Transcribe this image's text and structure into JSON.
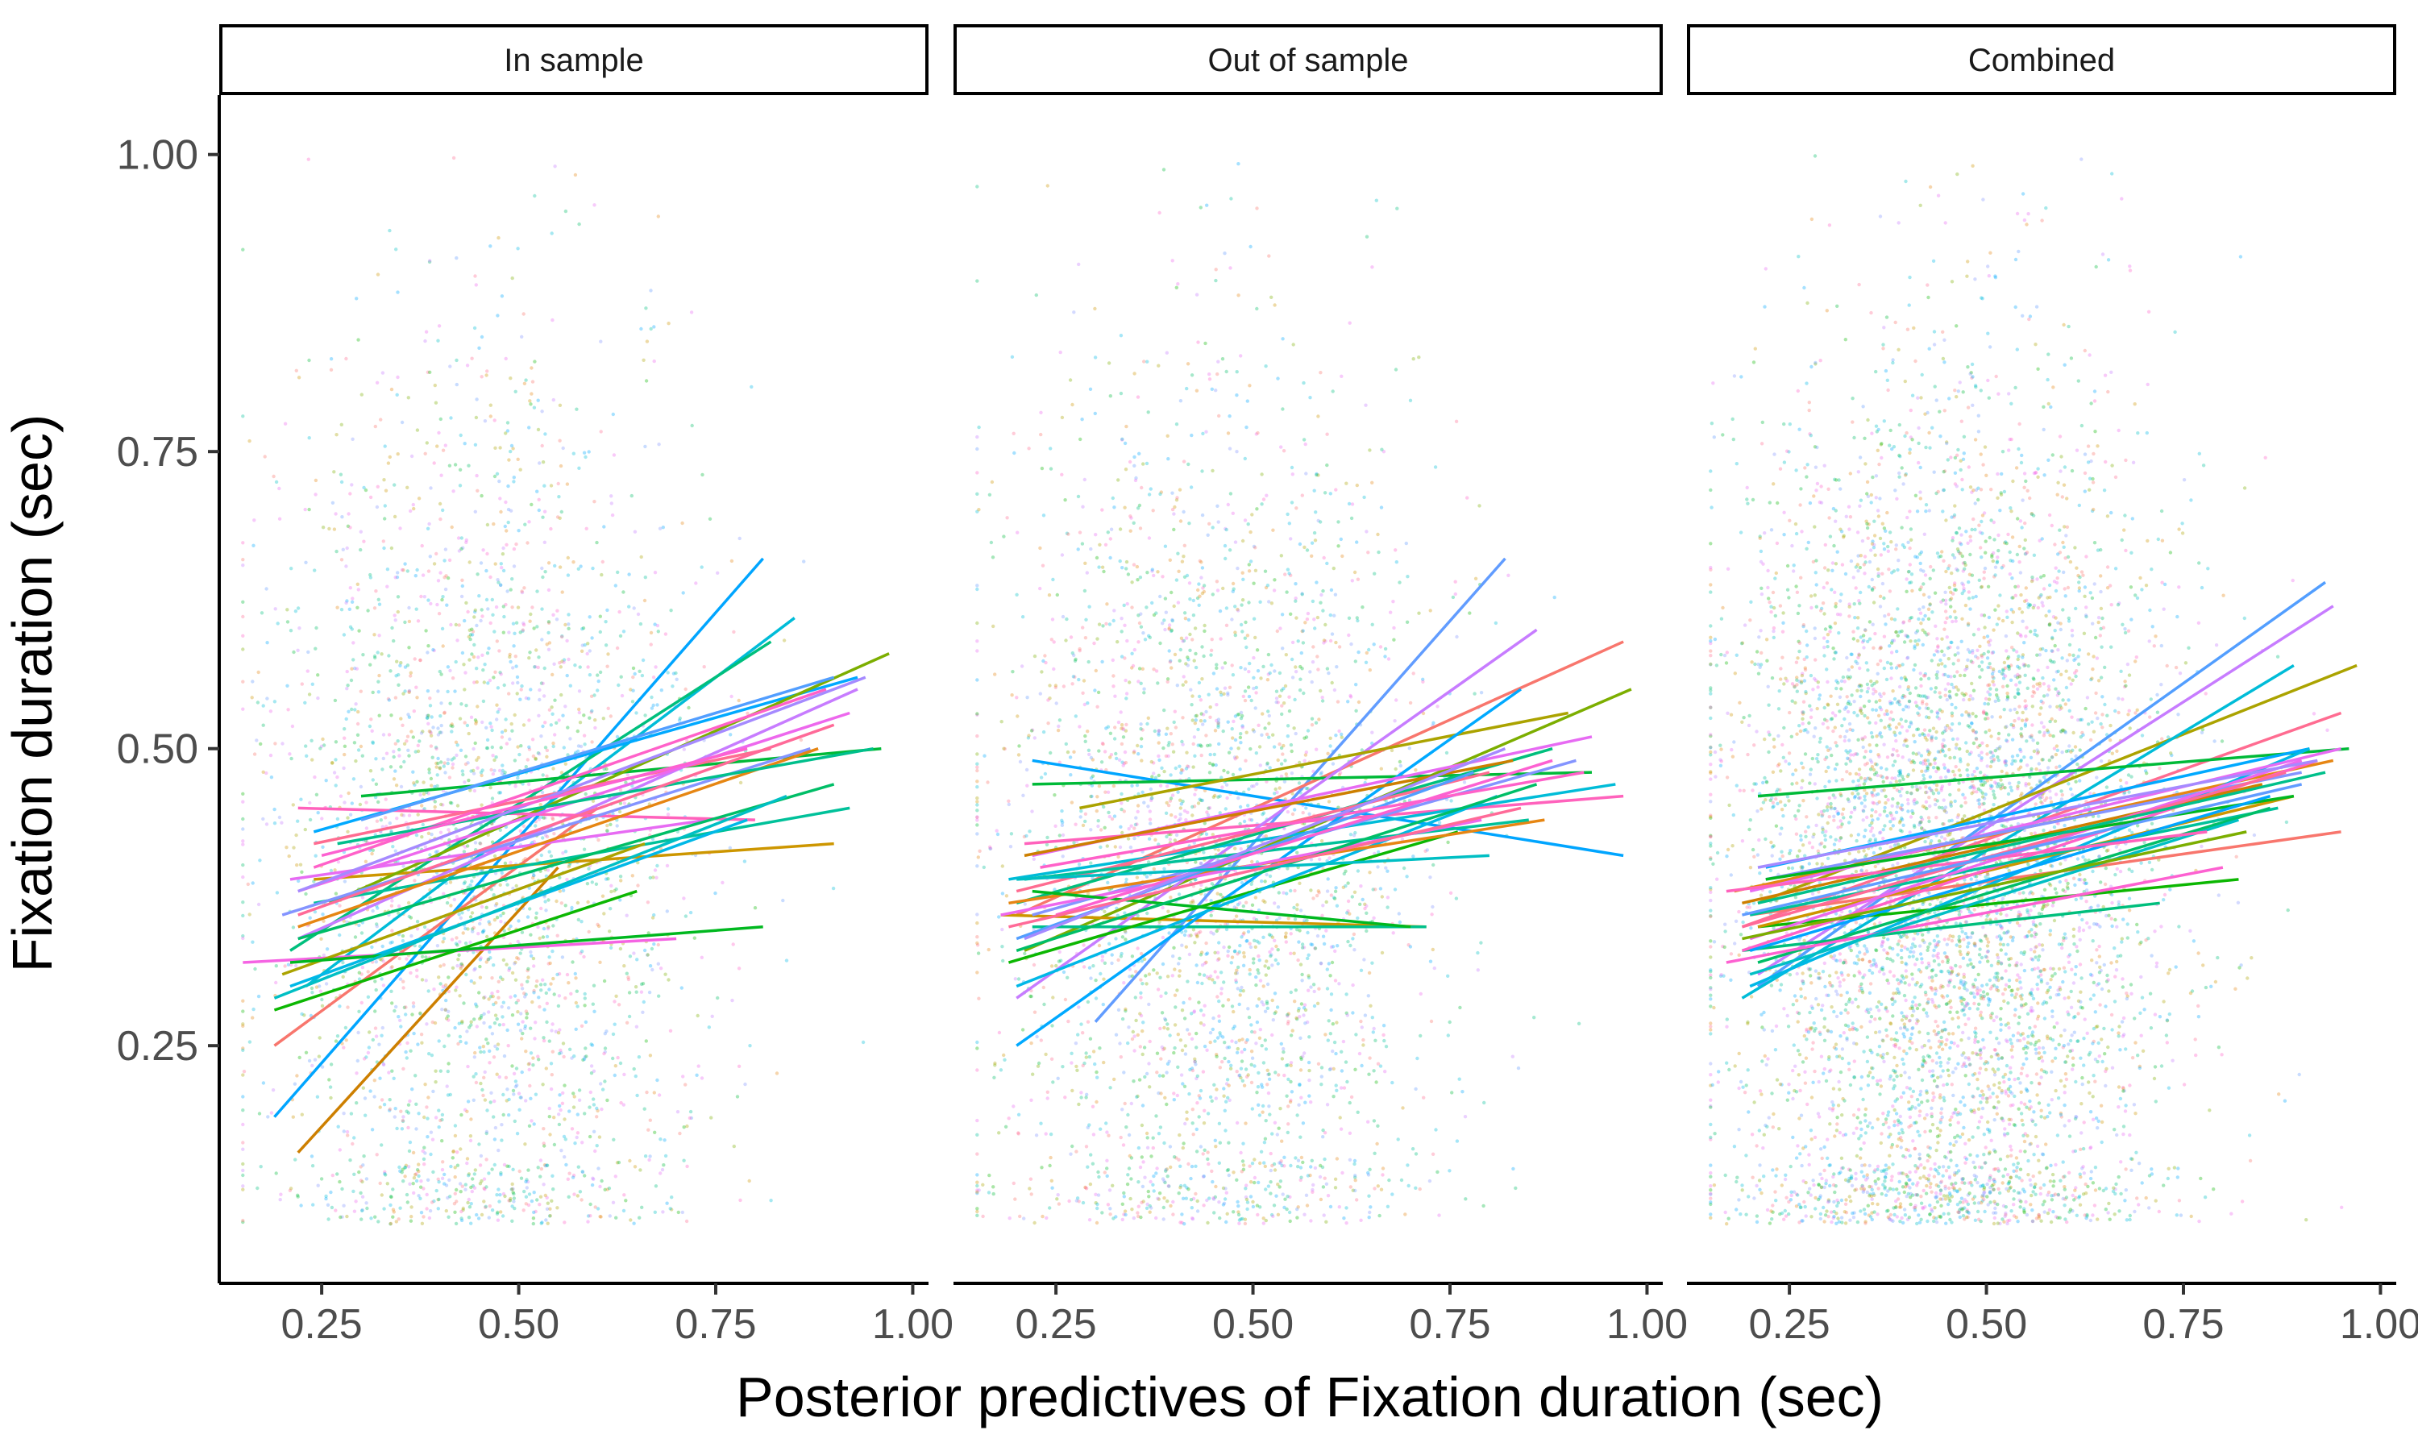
{
  "chart_data": {
    "type": "scatter",
    "layout": "faceted",
    "xlabel": "Posterior predictives of Fixation duration (sec)",
    "ylabel": "Fixation duration (sec)",
    "xlim": [
      0.12,
      1.02
    ],
    "ylim": [
      0.05,
      1.05
    ],
    "xticks": [
      0.25,
      0.5,
      0.75,
      1.0
    ],
    "xtick_labels": [
      "0.25",
      "0.50",
      "0.75",
      "1.00"
    ],
    "yticks": [
      0.25,
      0.5,
      0.75,
      1.0
    ],
    "ytick_labels": [
      "0.25",
      "0.50",
      "0.75",
      "1.00"
    ],
    "grid": false,
    "legend": "none",
    "scatter_points_per_facet": [
      3000,
      3000,
      6000
    ],
    "facets": [
      {
        "label": "In sample",
        "fit_lines": [
          {
            "x1": 0.19,
            "x2": 0.81,
            "y1": 0.19,
            "y2": 0.66,
            "color": "#00A5FF"
          },
          {
            "x1": 0.22,
            "x2": 0.55,
            "y1": 0.16,
            "y2": 0.4,
            "color": "#CD7F00"
          },
          {
            "x1": 0.19,
            "x2": 0.6,
            "y1": 0.25,
            "y2": 0.45,
            "color": "#F8766D"
          },
          {
            "x1": 0.23,
            "x2": 0.85,
            "y1": 0.3,
            "y2": 0.61,
            "color": "#00BCD8"
          },
          {
            "x1": 0.21,
            "x2": 0.82,
            "y1": 0.33,
            "y2": 0.59,
            "color": "#00BF7D"
          },
          {
            "x1": 0.15,
            "x2": 0.7,
            "y1": 0.32,
            "y2": 0.34,
            "color": "#F564E3"
          },
          {
            "x1": 0.3,
            "x2": 0.96,
            "y1": 0.46,
            "y2": 0.5,
            "color": "#00BA38"
          },
          {
            "x1": 0.24,
            "x2": 0.9,
            "y1": 0.39,
            "y2": 0.42,
            "color": "#CD9600"
          },
          {
            "x1": 0.24,
            "x2": 0.93,
            "y1": 0.43,
            "y2": 0.56,
            "color": "#00A9FF"
          },
          {
            "x1": 0.26,
            "x2": 0.97,
            "y1": 0.37,
            "y2": 0.58,
            "color": "#7CAE00"
          },
          {
            "x1": 0.22,
            "x2": 0.93,
            "y1": 0.34,
            "y2": 0.55,
            "color": "#C77CFF"
          },
          {
            "x1": 0.21,
            "x2": 0.74,
            "y1": 0.39,
            "y2": 0.44,
            "color": "#E76BF3"
          },
          {
            "x1": 0.24,
            "x2": 0.92,
            "y1": 0.37,
            "y2": 0.45,
            "color": "#00C19A"
          },
          {
            "x1": 0.22,
            "x2": 0.8,
            "y1": 0.45,
            "y2": 0.44,
            "color": "#FF62BC"
          },
          {
            "x1": 0.24,
            "x2": 0.82,
            "y1": 0.42,
            "y2": 0.5,
            "color": "#FF6C91"
          },
          {
            "x1": 0.2,
            "x2": 0.87,
            "y1": 0.36,
            "y2": 0.5,
            "color": "#8494FF"
          },
          {
            "x1": 0.22,
            "x2": 0.88,
            "y1": 0.35,
            "y2": 0.5,
            "color": "#E68613"
          },
          {
            "x1": 0.19,
            "x2": 0.65,
            "y1": 0.28,
            "y2": 0.38,
            "color": "#0CB702"
          },
          {
            "x1": 0.21,
            "x2": 0.79,
            "y1": 0.3,
            "y2": 0.44,
            "color": "#00B8E7"
          },
          {
            "x1": 0.2,
            "x2": 0.66,
            "y1": 0.31,
            "y2": 0.42,
            "color": "#ABA300"
          },
          {
            "x1": 0.22,
            "x2": 0.92,
            "y1": 0.38,
            "y2": 0.53,
            "color": "#ED68ED"
          },
          {
            "x1": 0.22,
            "x2": 0.9,
            "y1": 0.34,
            "y2": 0.47,
            "color": "#00BE67"
          },
          {
            "x1": 0.21,
            "x2": 0.81,
            "y1": 0.32,
            "y2": 0.35,
            "color": "#00B81F"
          },
          {
            "x1": 0.3,
            "x2": 0.9,
            "y1": 0.44,
            "y2": 0.56,
            "color": "#529EFF"
          },
          {
            "x1": 0.24,
            "x2": 0.89,
            "y1": 0.4,
            "y2": 0.55,
            "color": "#FF61C9"
          },
          {
            "x1": 0.19,
            "x2": 0.84,
            "y1": 0.29,
            "y2": 0.46,
            "color": "#00BFC4"
          },
          {
            "x1": 0.27,
            "x2": 0.95,
            "y1": 0.42,
            "y2": 0.5,
            "color": "#00BF8C"
          },
          {
            "x1": 0.22,
            "x2": 0.94,
            "y1": 0.38,
            "y2": 0.56,
            "color": "#A58AFF"
          },
          {
            "x1": 0.25,
            "x2": 0.79,
            "y1": 0.41,
            "y2": 0.5,
            "color": "#FD61D1"
          },
          {
            "x1": 0.22,
            "x2": 0.9,
            "y1": 0.36,
            "y2": 0.52,
            "color": "#FF6A98"
          }
        ]
      },
      {
        "label": "Out of sample",
        "fit_lines": [
          {
            "x1": 0.22,
            "x2": 0.97,
            "y1": 0.49,
            "y2": 0.41,
            "color": "#00A5FF"
          },
          {
            "x1": 0.3,
            "x2": 0.82,
            "y1": 0.27,
            "y2": 0.66,
            "color": "#619CFF"
          },
          {
            "x1": 0.2,
            "x2": 0.97,
            "y1": 0.36,
            "y2": 0.59,
            "color": "#F8766D"
          },
          {
            "x1": 0.21,
            "x2": 0.98,
            "y1": 0.33,
            "y2": 0.55,
            "color": "#7CAE00"
          },
          {
            "x1": 0.22,
            "x2": 0.93,
            "y1": 0.47,
            "y2": 0.48,
            "color": "#00BA38"
          },
          {
            "x1": 0.21,
            "x2": 0.97,
            "y1": 0.42,
            "y2": 0.46,
            "color": "#FF62BC"
          },
          {
            "x1": 0.18,
            "x2": 0.72,
            "y1": 0.36,
            "y2": 0.35,
            "color": "#CD9600"
          },
          {
            "x1": 0.2,
            "x2": 0.86,
            "y1": 0.29,
            "y2": 0.6,
            "color": "#C77CFF"
          },
          {
            "x1": 0.28,
            "x2": 0.9,
            "y1": 0.45,
            "y2": 0.53,
            "color": "#ABA300"
          },
          {
            "x1": 0.22,
            "x2": 0.72,
            "y1": 0.35,
            "y2": 0.35,
            "color": "#00C08B"
          },
          {
            "x1": 0.2,
            "x2": 0.84,
            "y1": 0.25,
            "y2": 0.55,
            "color": "#00A9FF"
          },
          {
            "x1": 0.19,
            "x2": 0.96,
            "y1": 0.39,
            "y2": 0.47,
            "color": "#00BCD8"
          },
          {
            "x1": 0.2,
            "x2": 0.88,
            "y1": 0.37,
            "y2": 0.5,
            "color": "#00BF7D"
          },
          {
            "x1": 0.22,
            "x2": 0.93,
            "y1": 0.41,
            "y2": 0.51,
            "color": "#E76BF3"
          },
          {
            "x1": 0.2,
            "x2": 0.8,
            "y1": 0.38,
            "y2": 0.48,
            "color": "#FF6C91"
          },
          {
            "x1": 0.19,
            "x2": 0.76,
            "y1": 0.32,
            "y2": 0.43,
            "color": "#0CB702"
          },
          {
            "x1": 0.22,
            "x2": 0.91,
            "y1": 0.36,
            "y2": 0.49,
            "color": "#8494FF"
          },
          {
            "x1": 0.2,
            "x2": 0.81,
            "y1": 0.3,
            "y2": 0.46,
            "color": "#00B8E7"
          },
          {
            "x1": 0.19,
            "x2": 0.87,
            "y1": 0.37,
            "y2": 0.44,
            "color": "#E68613"
          },
          {
            "x1": 0.21,
            "x2": 0.85,
            "y1": 0.39,
            "y2": 0.44,
            "color": "#00C19A"
          },
          {
            "x1": 0.18,
            "x2": 0.79,
            "y1": 0.36,
            "y2": 0.44,
            "color": "#ED68ED"
          },
          {
            "x1": 0.2,
            "x2": 0.78,
            "y1": 0.34,
            "y2": 0.48,
            "color": "#529EFF"
          },
          {
            "x1": 0.22,
            "x2": 0.7,
            "y1": 0.38,
            "y2": 0.35,
            "color": "#00B81F"
          },
          {
            "x1": 0.23,
            "x2": 0.92,
            "y1": 0.4,
            "y2": 0.48,
            "color": "#FF61C9"
          },
          {
            "x1": 0.2,
            "x2": 0.86,
            "y1": 0.33,
            "y2": 0.47,
            "color": "#00BE67"
          },
          {
            "x1": 0.25,
            "x2": 0.88,
            "y1": 0.36,
            "y2": 0.49,
            "color": "#FD61D1"
          },
          {
            "x1": 0.21,
            "x2": 0.83,
            "y1": 0.41,
            "y2": 0.49,
            "color": "#CD7F00"
          },
          {
            "x1": 0.21,
            "x2": 0.82,
            "y1": 0.34,
            "y2": 0.5,
            "color": "#A58AFF"
          },
          {
            "x1": 0.2,
            "x2": 0.8,
            "y1": 0.39,
            "y2": 0.41,
            "color": "#00BFC4"
          },
          {
            "x1": 0.19,
            "x2": 0.84,
            "y1": 0.35,
            "y2": 0.45,
            "color": "#FF6A98"
          }
        ]
      },
      {
        "label": "Combined",
        "fit_lines": [
          {
            "x1": 0.21,
            "x2": 0.93,
            "y1": 0.3,
            "y2": 0.64,
            "color": "#529EFF"
          },
          {
            "x1": 0.21,
            "x2": 0.94,
            "y1": 0.31,
            "y2": 0.62,
            "color": "#C77CFF"
          },
          {
            "x1": 0.21,
            "x2": 0.97,
            "y1": 0.37,
            "y2": 0.57,
            "color": "#ABA300"
          },
          {
            "x1": 0.19,
            "x2": 0.89,
            "y1": 0.29,
            "y2": 0.57,
            "color": "#00BCD8"
          },
          {
            "x1": 0.19,
            "x2": 0.95,
            "y1": 0.35,
            "y2": 0.53,
            "color": "#FF6C91"
          },
          {
            "x1": 0.21,
            "x2": 0.96,
            "y1": 0.46,
            "y2": 0.5,
            "color": "#00BA38"
          },
          {
            "x1": 0.2,
            "x2": 0.95,
            "y1": 0.36,
            "y2": 0.43,
            "color": "#F8766D"
          },
          {
            "x1": 0.21,
            "x2": 0.82,
            "y1": 0.35,
            "y2": 0.39,
            "color": "#0CB702"
          },
          {
            "x1": 0.19,
            "x2": 0.72,
            "y1": 0.33,
            "y2": 0.37,
            "color": "#00BF7D"
          },
          {
            "x1": 0.22,
            "x2": 0.91,
            "y1": 0.4,
            "y2": 0.5,
            "color": "#00A9FF"
          },
          {
            "x1": 0.18,
            "x2": 0.94,
            "y1": 0.38,
            "y2": 0.49,
            "color": "#E68613"
          },
          {
            "x1": 0.2,
            "x2": 0.91,
            "y1": 0.3,
            "y2": 0.5,
            "color": "#00B8E7"
          },
          {
            "x1": 0.21,
            "x2": 0.89,
            "y1": 0.35,
            "y2": 0.46,
            "color": "#CD9600"
          },
          {
            "x1": 0.19,
            "x2": 0.92,
            "y1": 0.33,
            "y2": 0.49,
            "color": "#FF61C9"
          },
          {
            "x1": 0.2,
            "x2": 0.95,
            "y1": 0.38,
            "y2": 0.5,
            "color": "#E76BF3"
          },
          {
            "x1": 0.2,
            "x2": 0.87,
            "y1": 0.36,
            "y2": 0.45,
            "color": "#00C19A"
          },
          {
            "x1": 0.21,
            "x2": 0.86,
            "y1": 0.32,
            "y2": 0.45,
            "color": "#00BE67"
          },
          {
            "x1": 0.22,
            "x2": 0.9,
            "y1": 0.39,
            "y2": 0.48,
            "color": "#8494FF"
          },
          {
            "x1": 0.19,
            "x2": 0.85,
            "y1": 0.37,
            "y2": 0.47,
            "color": "#CD7F00"
          },
          {
            "x1": 0.2,
            "x2": 0.9,
            "y1": 0.34,
            "y2": 0.49,
            "color": "#ED68ED"
          },
          {
            "x1": 0.17,
            "x2": 0.8,
            "y1": 0.32,
            "y2": 0.4,
            "color": "#FD61D1"
          },
          {
            "x1": 0.21,
            "x2": 0.92,
            "y1": 0.4,
            "y2": 0.49,
            "color": "#A58AFF"
          },
          {
            "x1": 0.19,
            "x2": 0.88,
            "y1": 0.35,
            "y2": 0.48,
            "color": "#FF6A98"
          },
          {
            "x1": 0.2,
            "x2": 0.82,
            "y1": 0.31,
            "y2": 0.44,
            "color": "#00BFC4"
          },
          {
            "x1": 0.22,
            "x2": 0.89,
            "y1": 0.39,
            "y2": 0.46,
            "color": "#00B81F"
          },
          {
            "x1": 0.2,
            "x2": 0.86,
            "y1": 0.33,
            "y2": 0.46,
            "color": "#00A5FF"
          },
          {
            "x1": 0.17,
            "x2": 0.78,
            "y1": 0.38,
            "y2": 0.43,
            "color": "#FF62BC"
          },
          {
            "x1": 0.19,
            "x2": 0.83,
            "y1": 0.34,
            "y2": 0.43,
            "color": "#7CAE00"
          },
          {
            "x1": 0.21,
            "x2": 0.93,
            "y1": 0.37,
            "y2": 0.48,
            "color": "#00C08B"
          },
          {
            "x1": 0.19,
            "x2": 0.9,
            "y1": 0.36,
            "y2": 0.47,
            "color": "#619CFF"
          }
        ]
      }
    ],
    "point_colors": [
      "#F8766D",
      "#E68613",
      "#CD9600",
      "#ABA300",
      "#7CAE00",
      "#0CB702",
      "#00BE67",
      "#00C19A",
      "#00BFC4",
      "#00B8E7",
      "#00A9FF",
      "#8494FF",
      "#C77CFF",
      "#ED68ED",
      "#FF61C9",
      "#FF6C91",
      "#00A5FF",
      "#00BA38",
      "#619CFF",
      "#00BF7D",
      "#00BCD8",
      "#E76BF3"
    ]
  }
}
